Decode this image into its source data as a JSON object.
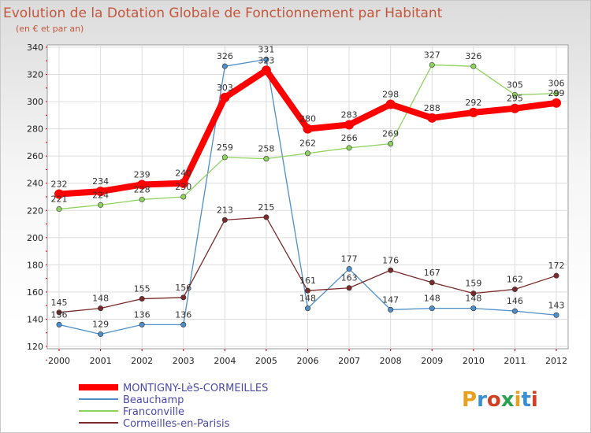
{
  "chart_data": {
    "type": "line",
    "title": "Evolution de la Dotation Globale de Fonctionnement par Habitant",
    "subtitle": "(en € et par an)",
    "xlabel": "",
    "ylabel": "",
    "categories": [
      "2000",
      "2001",
      "2002",
      "2003",
      "2004",
      "2005",
      "2006",
      "2007",
      "2008",
      "2009",
      "2010",
      "2011",
      "2012"
    ],
    "ylim": [
      120,
      340
    ],
    "yticks": [
      120,
      140,
      160,
      180,
      200,
      220,
      240,
      260,
      280,
      300,
      320,
      340
    ],
    "grid": true,
    "legend_position": "bottom-left",
    "series": [
      {
        "name": "MONTIGNY-LèS-CORMEILLES",
        "color": "#ff0000",
        "values": [
          232,
          234,
          239,
          240,
          303,
          323,
          280,
          283,
          298,
          288,
          292,
          295,
          299
        ]
      },
      {
        "name": "Beauchamp",
        "color": "#4f8fc9",
        "values": [
          136,
          129,
          136,
          136,
          326,
          331,
          148,
          177,
          147,
          148,
          148,
          146,
          143
        ]
      },
      {
        "name": "Franconville",
        "color": "#8fd35f",
        "values": [
          221,
          224,
          228,
          230,
          259,
          258,
          262,
          266,
          269,
          327,
          326,
          305,
          306
        ]
      },
      {
        "name": "Cormeilles-en-Parisis",
        "color": "#7a2a2a",
        "values": [
          145,
          148,
          155,
          156,
          213,
          215,
          161,
          163,
          176,
          167,
          159,
          162,
          172
        ]
      }
    ]
  },
  "logo": {
    "text": "Proxiti"
  }
}
